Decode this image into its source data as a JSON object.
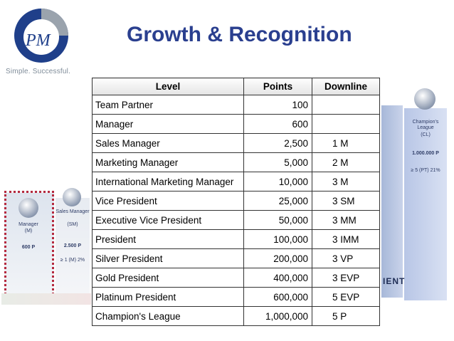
{
  "brand": {
    "logo_text": "PM",
    "tagline": "Simple. Successful."
  },
  "title": "Growth & Recognition",
  "background_cards": {
    "left1": {
      "name": "Manager",
      "code": "(M)",
      "points": "600 P"
    },
    "left2": {
      "name": "Sales Manager",
      "code": "(SM)",
      "points": "2.500 P",
      "req": "≥ 1 (M) 2%"
    },
    "right": {
      "name": "Champion's League",
      "code": "(CL)",
      "points": "1.000.000 P",
      "req": "≥ 5 (PT) 21%"
    },
    "right_fragment": "IENT"
  },
  "table": {
    "headers": {
      "level": "Level",
      "points": "Points",
      "downline": "Downline"
    },
    "rows": [
      {
        "level": "Team Partner",
        "points": "100",
        "downline": ""
      },
      {
        "level": "Manager",
        "points": "600",
        "downline": ""
      },
      {
        "level": "Sales Manager",
        "points": "2,500",
        "downline": "1 M"
      },
      {
        "level": "Marketing Manager",
        "points": "5,000",
        "downline": "2 M"
      },
      {
        "level": "International Marketing Manager",
        "points": "10,000",
        "downline": "3 M"
      },
      {
        "level": "Vice President",
        "points": "25,000",
        "downline": "3 SM"
      },
      {
        "level": "Executive Vice President",
        "points": "50,000",
        "downline": "3 MM"
      },
      {
        "level": "President",
        "points": "100,000",
        "downline": "3 IMM"
      },
      {
        "level": "Silver President",
        "points": "200,000",
        "downline": "3 VP"
      },
      {
        "level": "Gold President",
        "points": "400,000",
        "downline": "3 EVP"
      },
      {
        "level": "Platinum President",
        "points": "600,000",
        "downline": "5 EVP"
      },
      {
        "level": "Champion's League",
        "points": "1,000,000",
        "downline": "5 P"
      }
    ]
  }
}
